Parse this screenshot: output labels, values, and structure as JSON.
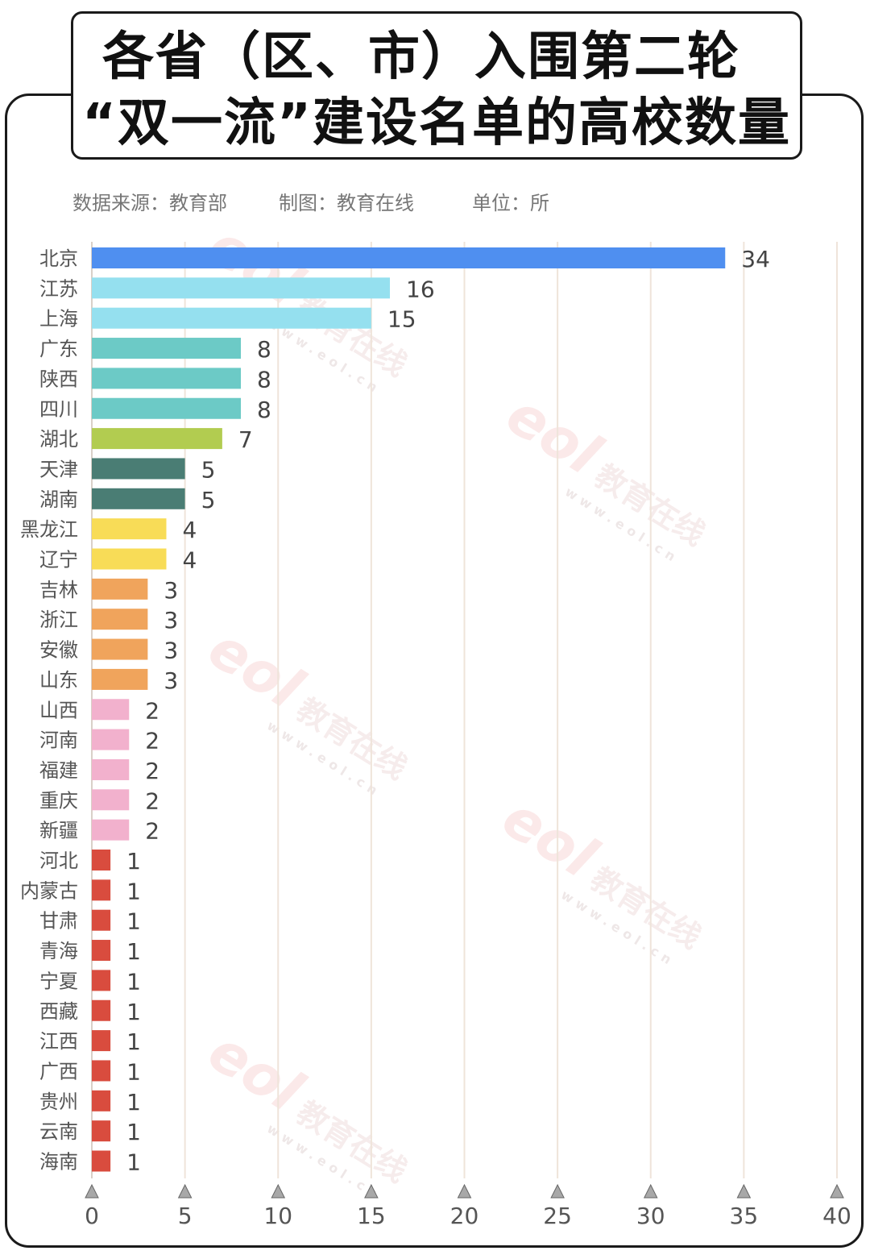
{
  "title": {
    "line1": "各省（区、市）入围第二轮",
    "line2": "“双一流”建设名单的高校数量"
  },
  "meta": {
    "source": "数据来源：教育部",
    "maker": "制图：教育在线",
    "unit": "单位：所"
  },
  "watermark": {
    "logo": "eol",
    "name": "教育在线",
    "url": "www.eol.cn"
  },
  "chart_data": {
    "type": "bar",
    "orientation": "horizontal",
    "categories": [
      "北京",
      "江苏",
      "上海",
      "广东",
      "陕西",
      "四川",
      "湖北",
      "天津",
      "湖南",
      "黑龙江",
      "辽宁",
      "吉林",
      "浙江",
      "安徽",
      "山东",
      "山西",
      "河南",
      "福建",
      "重庆",
      "新疆",
      "河北",
      "内蒙古",
      "甘肃",
      "青海",
      "宁夏",
      "西藏",
      "江西",
      "广西",
      "贵州",
      "云南",
      "海南"
    ],
    "values": [
      34,
      16,
      15,
      8,
      8,
      8,
      7,
      5,
      5,
      4,
      4,
      3,
      3,
      3,
      3,
      2,
      2,
      2,
      2,
      2,
      1,
      1,
      1,
      1,
      1,
      1,
      1,
      1,
      1,
      1,
      1
    ],
    "xlim": [
      0,
      40
    ],
    "xticks": [
      0,
      5,
      10,
      15,
      20,
      25,
      30,
      35,
      40
    ],
    "grid": true,
    "legend": "none",
    "colors_by_value": {
      "34": "#4f8ff0",
      "16": "#95e0ef",
      "15": "#95e0ef",
      "8": "#6ccac6",
      "7": "#b2cc50",
      "5": "#4a7d74",
      "4": "#f8dc57",
      "3": "#f0a45c",
      "2": "#f2b1cd",
      "1": "#d94c3e"
    },
    "grid_color": "#efe4da",
    "axis_marker_color": "#a8a8a8"
  }
}
